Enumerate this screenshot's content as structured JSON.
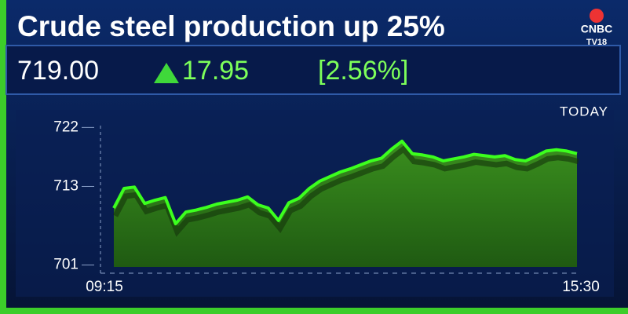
{
  "headline": "Crude steel production up 25%",
  "ticker": {
    "price": "719.00",
    "change": "17.95",
    "change_percent": "[2.56%]"
  },
  "logo": {
    "top": "CNBC",
    "bottom": "TV18"
  },
  "chart_data": {
    "type": "area",
    "period": "TODAY",
    "categories": [
      "09:15",
      null,
      null,
      null,
      null,
      null,
      null,
      null,
      null,
      null,
      null,
      null,
      null,
      null,
      null,
      null,
      null,
      null,
      null,
      null,
      null,
      null,
      null,
      null,
      null,
      null,
      null,
      null,
      null,
      null,
      null,
      null,
      null,
      null,
      null,
      null,
      null,
      null,
      null,
      null,
      null,
      null,
      null,
      null,
      null,
      "15:30"
    ],
    "values": [
      709.7,
      712.7,
      712.9,
      710.4,
      710.9,
      711.3,
      707.3,
      709.1,
      709.4,
      709.8,
      710.3,
      710.6,
      710.9,
      711.4,
      710.2,
      709.7,
      707.8,
      710.5,
      711.2,
      712.7,
      713.8,
      714.5,
      715.2,
      715.7,
      716.3,
      716.9,
      717.3,
      718.7,
      719.9,
      718.0,
      717.8,
      717.5,
      716.9,
      717.2,
      717.5,
      717.9,
      717.7,
      717.5,
      717.7,
      717.1,
      716.9,
      717.6,
      718.4,
      718.6,
      718.4,
      718.0
    ],
    "color": "#3cff1e",
    "ylim": [
      700,
      723
    ],
    "yticks": [
      701,
      713,
      722
    ]
  }
}
